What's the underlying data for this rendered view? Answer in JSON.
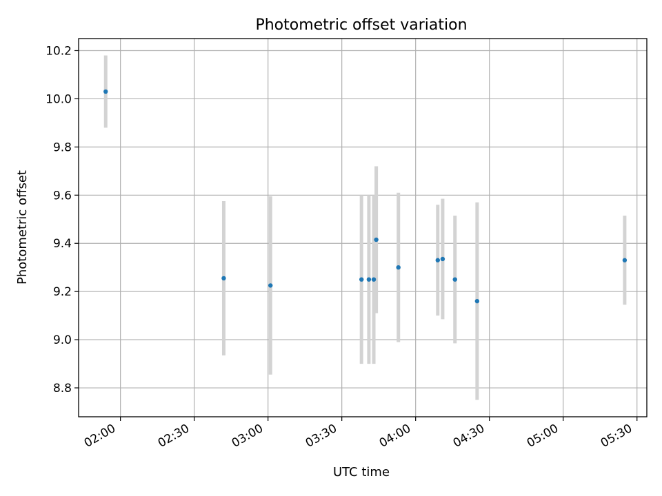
{
  "chart_data": {
    "type": "scatter",
    "title": "Photometric offset variation",
    "xlabel": "UTC time",
    "ylabel": "Photometric offset",
    "x_tick_labels": [
      "02:00",
      "02:30",
      "03:00",
      "03:30",
      "04:00",
      "04:30",
      "05:00",
      "05:30"
    ],
    "y_tick_labels": [
      "8.8",
      "9.0",
      "9.2",
      "9.4",
      "9.6",
      "9.8",
      "10.0",
      "10.2"
    ],
    "x_ticks": [
      "02:00",
      "02:30",
      "03:00",
      "03:30",
      "04:00",
      "04:30",
      "05:00",
      "05:30"
    ],
    "y_ticks": [
      8.8,
      9.0,
      9.2,
      9.4,
      9.6,
      9.8,
      10.0,
      10.2
    ],
    "xlim": [
      "01:43",
      "05:34"
    ],
    "ylim": [
      8.68,
      10.25
    ],
    "grid": true,
    "marker_color": "#1f77b4",
    "errorbar_color": "#d3d3d3",
    "points": [
      {
        "t": "01:54",
        "y": 10.03,
        "err": 0.15
      },
      {
        "t": "02:42",
        "y": 9.255,
        "err": 0.32
      },
      {
        "t": "03:01",
        "y": 9.225,
        "err": 0.37
      },
      {
        "t": "03:38",
        "y": 9.25,
        "err": 0.35
      },
      {
        "t": "03:41",
        "y": 9.25,
        "err": 0.35
      },
      {
        "t": "03:43",
        "y": 9.25,
        "err": 0.35
      },
      {
        "t": "03:44",
        "y": 9.415,
        "err": 0.305
      },
      {
        "t": "03:53",
        "y": 9.3,
        "err": 0.31
      },
      {
        "t": "04:09",
        "y": 9.33,
        "err": 0.23
      },
      {
        "t": "04:11",
        "y": 9.335,
        "err": 0.25
      },
      {
        "t": "04:16",
        "y": 9.25,
        "err": 0.265
      },
      {
        "t": "04:25",
        "y": 9.16,
        "err": 0.41
      },
      {
        "t": "05:25",
        "y": 9.33,
        "err": 0.185
      }
    ]
  }
}
